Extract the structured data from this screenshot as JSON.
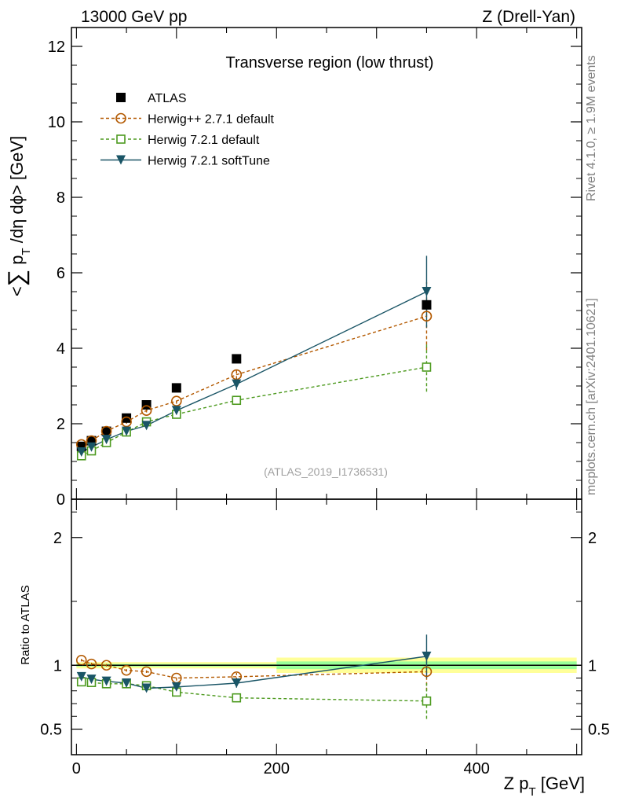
{
  "header": {
    "energy_label": "13000 GeV pp",
    "process_label": "Z (Drell-Yan)"
  },
  "side_labels": {
    "rivet": "Rivet 4.1.0, ≥ 1.9M events",
    "mcplots": "mcplots.cern.ch [arXiv:2401.10621]"
  },
  "chart_data": [
    {
      "panel": "main",
      "type": "line",
      "title": "Transverse region (low thrust)",
      "xlabel": "Z p_T [GeV]",
      "ylabel": "<∑ p_T /dη dφ> [GeV]",
      "watermark": "(ATLAS_2019_I1736531)",
      "xlim": [
        -5,
        505
      ],
      "ylim": [
        0,
        12.5
      ],
      "yticks": [
        0,
        2,
        4,
        6,
        8,
        10,
        12
      ],
      "ytick_labels": [
        "0",
        "2",
        "4",
        "6",
        "8",
        "10",
        "12"
      ],
      "legend_position": "top-left",
      "series": [
        {
          "name": "ATLAS",
          "color": "#000000",
          "marker": "filled-square",
          "x": [
            5,
            15,
            30,
            50,
            70,
            100,
            160,
            350
          ],
          "y": [
            1.4,
            1.55,
            1.8,
            2.15,
            2.5,
            2.95,
            3.72,
            5.15
          ]
        },
        {
          "name": "Herwig++ 2.7.1 default",
          "color": "#b35900",
          "marker": "open-circle",
          "dashed": true,
          "x": [
            5,
            15,
            30,
            50,
            70,
            100,
            160,
            350
          ],
          "y": [
            1.45,
            1.55,
            1.8,
            2.05,
            2.35,
            2.6,
            3.3,
            4.85
          ],
          "err": [
            0.05,
            0.05,
            0.05,
            0.05,
            0.05,
            0.07,
            0.12,
            0.9
          ]
        },
        {
          "name": "Herwig 7.2.1 default",
          "color": "#4d9a1f",
          "marker": "open-square",
          "dashed": true,
          "x": [
            5,
            15,
            30,
            50,
            70,
            100,
            160,
            350
          ],
          "y": [
            1.15,
            1.28,
            1.5,
            1.78,
            2.05,
            2.25,
            2.62,
            3.5
          ],
          "err": [
            0.04,
            0.04,
            0.04,
            0.04,
            0.05,
            0.06,
            0.1,
            0.65
          ]
        },
        {
          "name": "Herwig 7.2.1 softTune",
          "color": "#1a5566",
          "marker": "filled-triangle-down",
          "dashed": false,
          "x": [
            5,
            15,
            30,
            50,
            70,
            100,
            160,
            350
          ],
          "y": [
            1.25,
            1.38,
            1.58,
            1.8,
            1.95,
            2.35,
            3.05,
            5.5
          ],
          "err": [
            0.04,
            0.04,
            0.04,
            0.04,
            0.05,
            0.07,
            0.15,
            0.95
          ]
        }
      ]
    },
    {
      "panel": "ratio",
      "type": "line",
      "xlabel": "Z p_T [GeV]",
      "ylabel": "Ratio to ATLAS",
      "xlim": [
        -5,
        505
      ],
      "ylim": [
        0.3,
        2.3
      ],
      "xticks": [
        0,
        200,
        400
      ],
      "xtick_labels": [
        "0",
        "200",
        "400"
      ],
      "yticks": [
        0.5,
        1,
        2
      ],
      "ytick_labels": [
        "0.5",
        "1",
        "2"
      ],
      "reference_line": 1,
      "bands": [
        {
          "x_range": [
            0,
            200
          ],
          "outer": [
            0.975,
            1.025
          ],
          "inner": [
            0.99,
            1.01
          ]
        },
        {
          "x_range": [
            200,
            500
          ],
          "outer": [
            0.94,
            1.06
          ],
          "inner": [
            0.97,
            1.03
          ]
        }
      ],
      "series": [
        {
          "name": "Herwig++ 2.7.1 default",
          "color": "#b35900",
          "marker": "open-circle",
          "dashed": true,
          "x": [
            5,
            15,
            30,
            50,
            70,
            100,
            160,
            350
          ],
          "y": [
            1.04,
            1.01,
            1.0,
            0.96,
            0.95,
            0.9,
            0.91,
            0.95
          ],
          "err": [
            0.01,
            0.01,
            0.01,
            0.01,
            0.01,
            0.02,
            0.03,
            0.15
          ]
        },
        {
          "name": "Herwig 7.2.1 default",
          "color": "#4d9a1f",
          "marker": "open-square",
          "dashed": true,
          "x": [
            5,
            15,
            30,
            50,
            70,
            100,
            160,
            350
          ],
          "y": [
            0.87,
            0.865,
            0.855,
            0.855,
            0.84,
            0.79,
            0.745,
            0.72
          ],
          "err": [
            0.01,
            0.01,
            0.01,
            0.01,
            0.015,
            0.02,
            0.035,
            0.14
          ]
        },
        {
          "name": "Herwig 7.2.1 softTune",
          "color": "#1a5566",
          "marker": "filled-triangle-down",
          "dashed": false,
          "x": [
            5,
            15,
            30,
            50,
            70,
            100,
            160,
            350
          ],
          "y": [
            0.91,
            0.89,
            0.875,
            0.86,
            0.82,
            0.83,
            0.86,
            1.07
          ],
          "err": [
            0.01,
            0.01,
            0.01,
            0.01,
            0.015,
            0.02,
            0.035,
            0.17
          ]
        }
      ]
    }
  ]
}
